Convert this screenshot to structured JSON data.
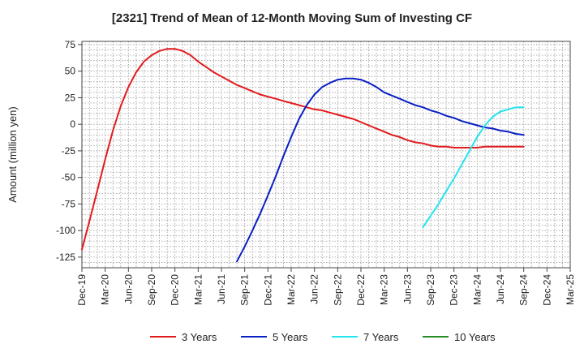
{
  "chart_data": {
    "type": "line",
    "title": "[2321]  Trend of Mean of 12-Month Moving Sum of Investing CF",
    "ylabel": "Amount (million yen)",
    "xlabel": "",
    "ylim": [
      -135,
      78
    ],
    "yticks": [
      75,
      50,
      25,
      0,
      -25,
      -50,
      -75,
      -100,
      -125
    ],
    "grid": true,
    "legend_position": "bottom",
    "x_tick_labels": [
      "Dec-19",
      "Mar-20",
      "Jun-20",
      "Sep-20",
      "Dec-20",
      "Mar-21",
      "Jun-21",
      "Sep-21",
      "Dec-21",
      "Mar-22",
      "Jun-22",
      "Sep-22",
      "Dec-22",
      "Mar-23",
      "Jun-23",
      "Sep-23",
      "Dec-23",
      "Mar-24",
      "Jun-24",
      "Sep-24",
      "Dec-24",
      "Mar-25"
    ],
    "series": [
      {
        "name": "3 Years",
        "color": "#e31a1c",
        "x": [
          "2019-12",
          "2020-01",
          "2020-02",
          "2020-03",
          "2020-04",
          "2020-05",
          "2020-06",
          "2020-07",
          "2020-08",
          "2020-09",
          "2020-10",
          "2020-11",
          "2020-12",
          "2021-01",
          "2021-02",
          "2021-03",
          "2021-04",
          "2021-05",
          "2021-06",
          "2021-07",
          "2021-08",
          "2021-09",
          "2021-10",
          "2021-11",
          "2021-12",
          "2022-01",
          "2022-02",
          "2022-03",
          "2022-04",
          "2022-05",
          "2022-06",
          "2022-07",
          "2022-08",
          "2022-09",
          "2022-10",
          "2022-11",
          "2022-12",
          "2023-01",
          "2023-02",
          "2023-03",
          "2023-04",
          "2023-05",
          "2023-06",
          "2023-07",
          "2023-08",
          "2023-09",
          "2023-10",
          "2023-11",
          "2023-12",
          "2024-01",
          "2024-02",
          "2024-03",
          "2024-04",
          "2024-05",
          "2024-06",
          "2024-07",
          "2024-08",
          "2024-09"
        ],
        "values": [
          -118,
          -90,
          -62,
          -33,
          -6,
          17,
          35,
          49,
          59,
          65,
          69,
          71,
          71,
          69,
          65,
          59,
          54,
          49,
          45,
          41,
          37,
          34,
          31,
          28,
          26,
          24,
          22,
          20,
          18,
          16,
          14,
          13,
          11,
          9,
          7,
          5,
          2,
          -1,
          -4,
          -7,
          -10,
          -12,
          -15,
          -17,
          -18,
          -20,
          -21,
          -21,
          -22,
          -22,
          -22,
          -22,
          -21,
          -21,
          -21,
          -21,
          -21,
          -21
        ]
      },
      {
        "name": "5 Years",
        "color": "#0a1fc4",
        "x": [
          "2021-08",
          "2021-09",
          "2021-10",
          "2021-11",
          "2021-12",
          "2022-01",
          "2022-02",
          "2022-03",
          "2022-04",
          "2022-05",
          "2022-06",
          "2022-07",
          "2022-08",
          "2022-09",
          "2022-10",
          "2022-11",
          "2022-12",
          "2023-01",
          "2023-02",
          "2023-03",
          "2023-04",
          "2023-05",
          "2023-06",
          "2023-07",
          "2023-08",
          "2023-09",
          "2023-10",
          "2023-11",
          "2023-12",
          "2024-01",
          "2024-02",
          "2024-03",
          "2024-04",
          "2024-05",
          "2024-06",
          "2024-07",
          "2024-08",
          "2024-09"
        ],
        "values": [
          -129,
          -115,
          -100,
          -84,
          -67,
          -49,
          -30,
          -12,
          5,
          18,
          28,
          35,
          39,
          42,
          43,
          43,
          42,
          39,
          35,
          30,
          27,
          24,
          21,
          18,
          16,
          13,
          11,
          8,
          6,
          3,
          1,
          -1,
          -3,
          -4,
          -6,
          -7,
          -9,
          -10
        ]
      },
      {
        "name": "7 Years",
        "color": "#22e5ef",
        "x": [
          "2023-08",
          "2023-09",
          "2023-10",
          "2023-11",
          "2023-12",
          "2024-01",
          "2024-02",
          "2024-03",
          "2024-04",
          "2024-05",
          "2024-06",
          "2024-07",
          "2024-08",
          "2024-09"
        ],
        "values": [
          -97,
          -86,
          -75,
          -63,
          -51,
          -38,
          -25,
          -12,
          -1,
          7,
          12,
          14,
          16,
          16
        ]
      },
      {
        "name": "10 Years",
        "color": "#238b23",
        "x": [],
        "values": []
      }
    ]
  }
}
